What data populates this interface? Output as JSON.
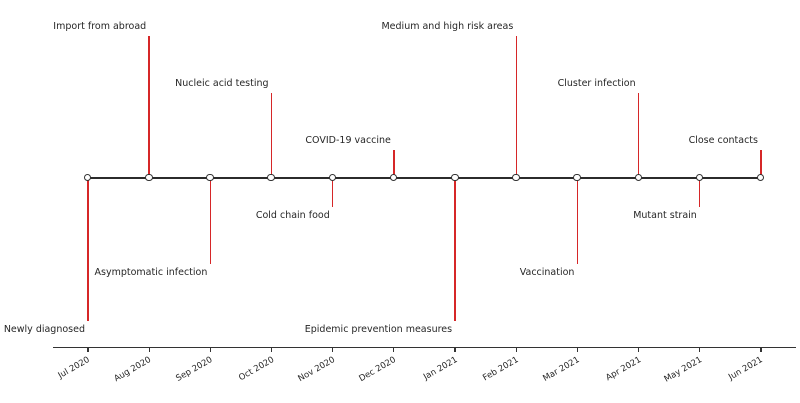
{
  "figure": {
    "background": "#ffffff",
    "description": "Timeline of COVID-19 related events, Jul 2020 - Jun 2021"
  },
  "chart_data": {
    "type": "timeline",
    "title": "",
    "xlabel": "",
    "ylabel": "",
    "grid": false,
    "legend": null,
    "tick_rotation_deg": 30,
    "categories": [
      "Jul 2020",
      "Aug 2020",
      "Sep 2020",
      "Oct 2020",
      "Nov 2020",
      "Dec 2020",
      "Jan 2021",
      "Feb 2021",
      "Mar 2021",
      "Apr 2021",
      "May 2021",
      "Jun 2021"
    ],
    "events": [
      {
        "date": "Jul 2020",
        "label": "Newly diagnosed",
        "level": -5
      },
      {
        "date": "Aug 2020",
        "label": "Import from abroad",
        "level": 5
      },
      {
        "date": "Sep 2020",
        "label": "Asymptomatic infection",
        "level": -3
      },
      {
        "date": "Oct 2020",
        "label": "Nucleic acid testing",
        "level": 3
      },
      {
        "date": "Nov 2020",
        "label": "Cold chain food",
        "level": -1
      },
      {
        "date": "Dec 2020",
        "label": "COVID-19 vaccine",
        "level": 1
      },
      {
        "date": "Jan 2021",
        "label": "Epidemic prevention measures",
        "level": -5
      },
      {
        "date": "Feb 2021",
        "label": "Medium and high risk areas",
        "level": 5
      },
      {
        "date": "Mar 2021",
        "label": "Vaccination",
        "level": -3
      },
      {
        "date": "Apr 2021",
        "label": "Cluster infection",
        "level": 3
      },
      {
        "date": "May 2021",
        "label": "Mutant strain",
        "level": -1
      },
      {
        "date": "Jun 2021",
        "label": "Close contacts",
        "level": 1
      }
    ],
    "colors": {
      "stem": "#d62728",
      "baseline": "#2b2b2b",
      "marker_fill": "#ffffff",
      "marker_edge": "#333333",
      "label_text": "#262626",
      "axis": "#333333",
      "tick_text": "#262626"
    }
  }
}
